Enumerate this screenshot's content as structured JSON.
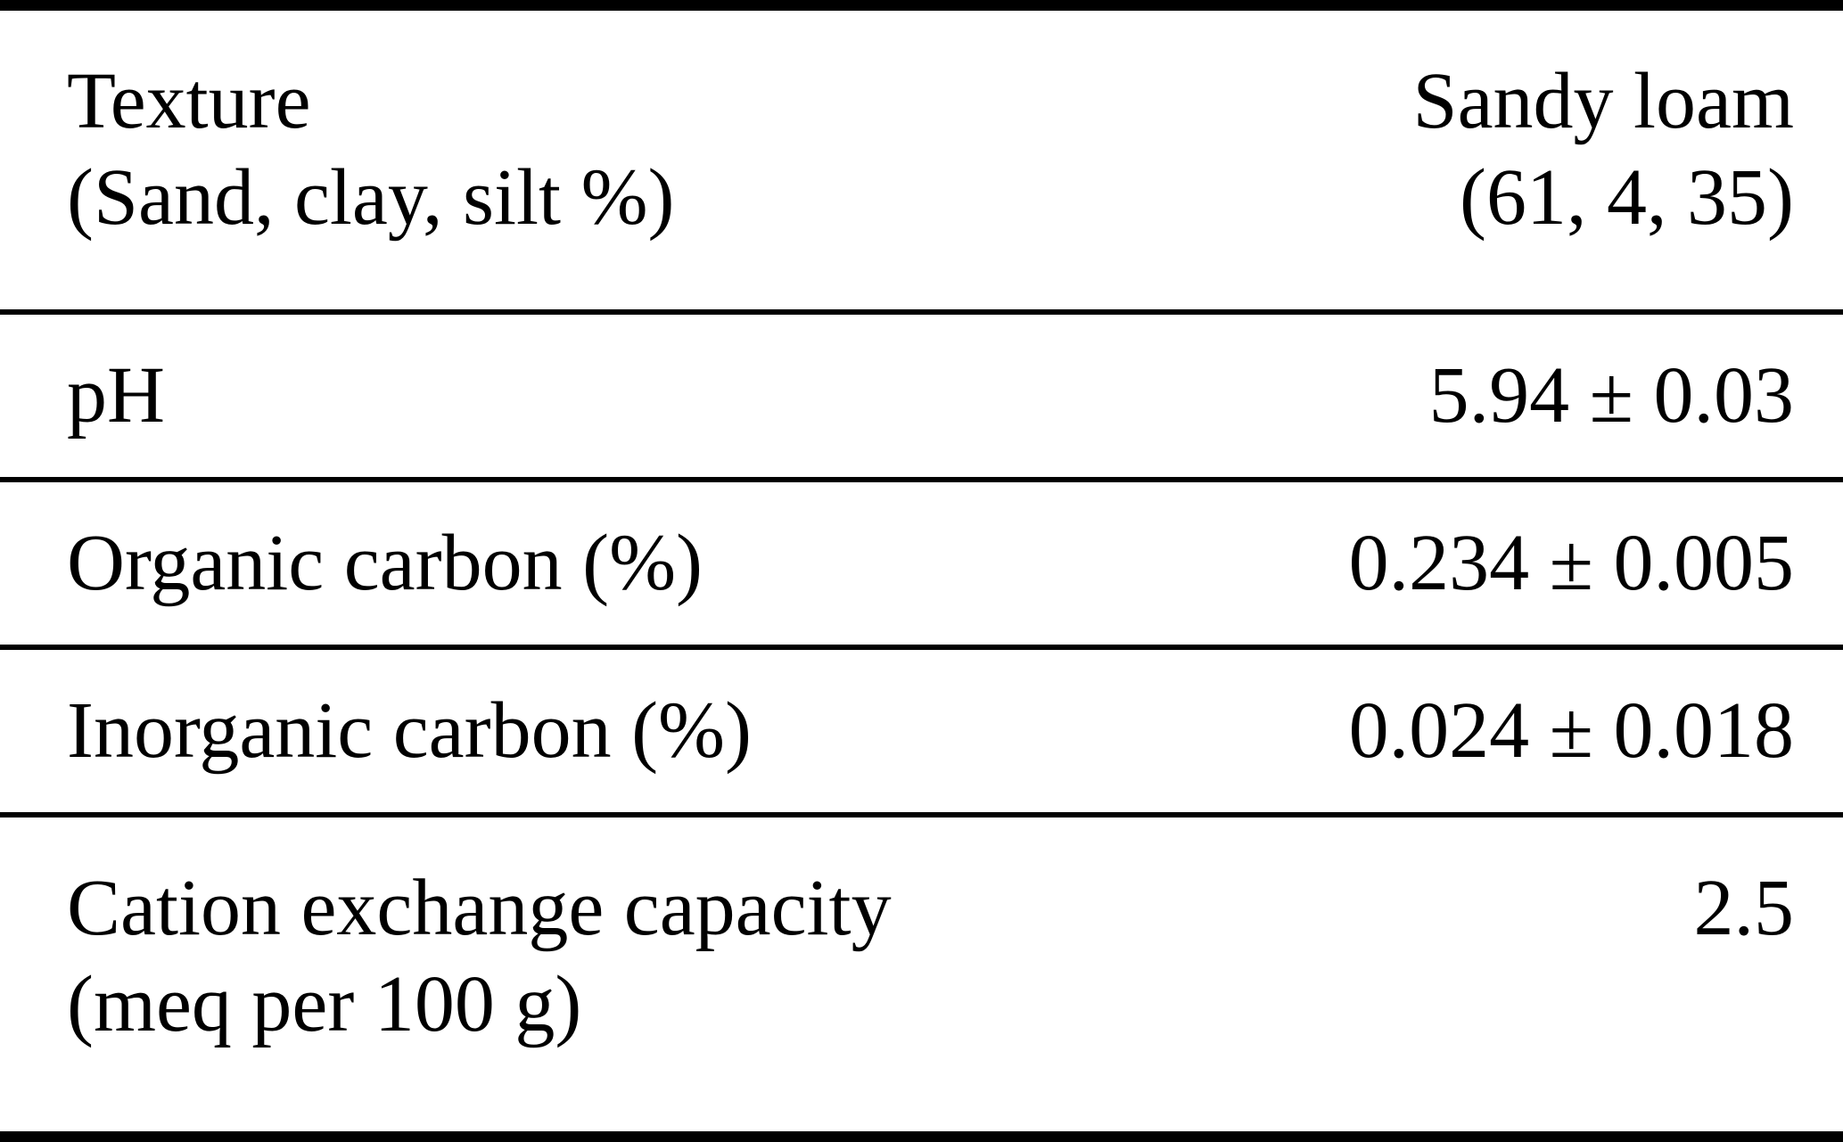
{
  "page": {
    "background_color": "#ffffff",
    "text_color": "#000000",
    "rule_color": "#000000"
  },
  "table": {
    "description": "Soil physicochemical properties table",
    "columns": [
      "property",
      "value"
    ],
    "rows": [
      {
        "property_line1": "Texture",
        "property_line2": "(Sand, clay, silt %)",
        "value_line1": "Sandy loam",
        "value_line2": "(61, 4, 35)"
      },
      {
        "property_line1": "pH",
        "value_line1": "5.94 ± 0.03"
      },
      {
        "property_line1": "Organic carbon (%)",
        "value_line1": "0.234 ± 0.005"
      },
      {
        "property_line1": "Inorganic carbon (%)",
        "value_line1": "0.024 ± 0.018"
      },
      {
        "property_line1": "Cation exchange capacity",
        "property_line2": "(meq per 100 g)",
        "value_line1": "2.5"
      }
    ]
  }
}
